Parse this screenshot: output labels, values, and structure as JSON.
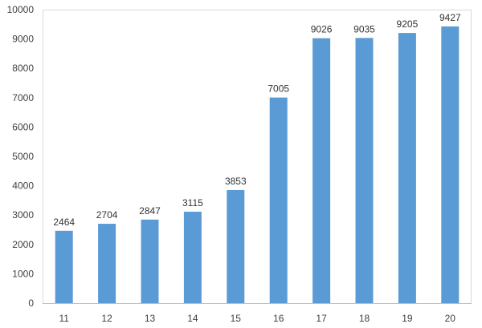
{
  "chart_data": {
    "type": "bar",
    "title": "",
    "xlabel": "",
    "ylabel": "",
    "categories": [
      "11",
      "12",
      "13",
      "14",
      "15",
      "16",
      "17",
      "18",
      "19",
      "20"
    ],
    "values": [
      2464,
      2704,
      2847,
      3115,
      3853,
      7005,
      9026,
      9035,
      9205,
      9427
    ],
    "ylim": [
      0,
      10000
    ],
    "yticks": [
      0,
      1000,
      2000,
      3000,
      4000,
      5000,
      6000,
      7000,
      8000,
      9000,
      10000
    ],
    "grid": false,
    "legend": "none",
    "bar_color": "#5b9bd5",
    "show_data_labels": true
  }
}
